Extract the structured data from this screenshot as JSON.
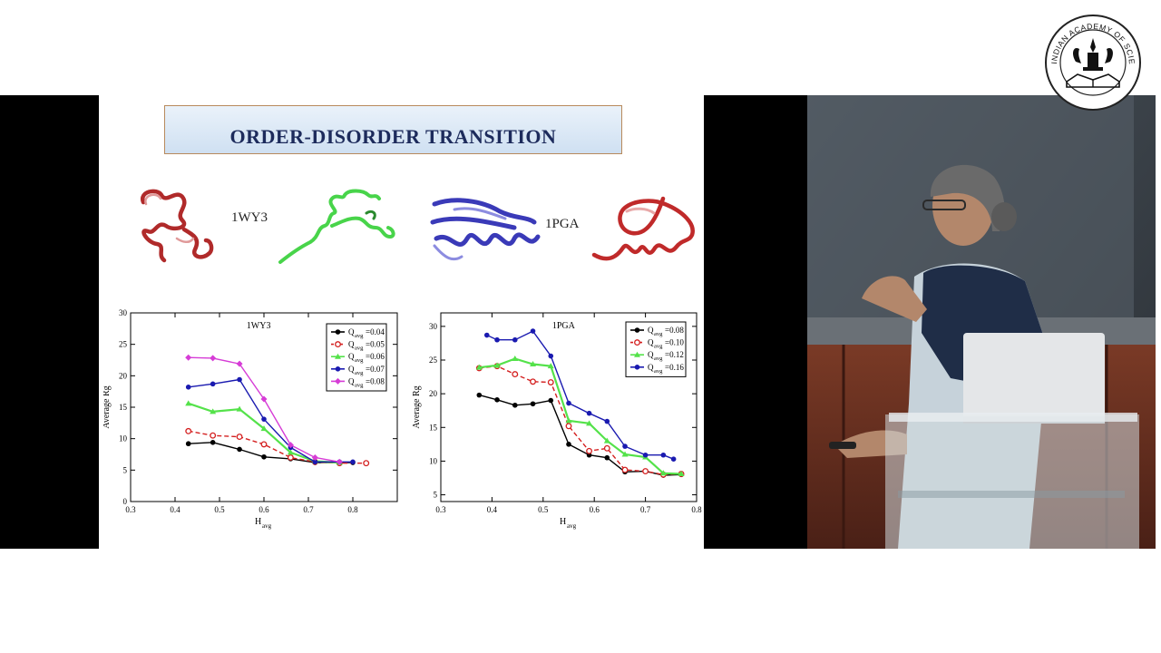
{
  "slide": {
    "title": "ORDER-DISORDER TRANSITION",
    "protein_labels": [
      "1WY3",
      "1PGA"
    ]
  },
  "chart_data": [
    {
      "type": "line",
      "title": "1WY3",
      "xlabel": "H",
      "xlabel_sub": "avg",
      "ylabel": "Average Rg",
      "xlim": [
        0.3,
        0.9
      ],
      "ylim": [
        0,
        30
      ],
      "xticks": [
        "0.3",
        "0.4",
        "0.5",
        "0.6",
        "0.7",
        "0.8"
      ],
      "yticks": [
        "0",
        "5",
        "10",
        "15",
        "20",
        "25",
        "30"
      ],
      "legend_position": "top-right",
      "series": [
        {
          "name": "Q",
          "sub": "avg",
          "suffix": "=0.04",
          "color": "#000000",
          "marker": "circle",
          "dash": false,
          "x": [
            0.43,
            0.485,
            0.545,
            0.6,
            0.66,
            0.715,
            0.77,
            0.8
          ],
          "y": [
            9.2,
            9.4,
            8.3,
            7.1,
            6.8,
            6.2,
            6.2,
            6.2
          ]
        },
        {
          "name": "Q",
          "sub": "avg",
          "suffix": "=0.05",
          "color": "#d42020",
          "marker": "circle-open",
          "dash": true,
          "x": [
            0.43,
            0.485,
            0.545,
            0.6,
            0.66,
            0.715,
            0.77,
            0.83
          ],
          "y": [
            11.2,
            10.5,
            10.3,
            9.1,
            7.0,
            6.3,
            6.1,
            6.1
          ]
        },
        {
          "name": "Q",
          "sub": "avg",
          "suffix": "=0.06",
          "color": "#54e24a",
          "marker": "triangle",
          "dash": false,
          "x": [
            0.43,
            0.485,
            0.545,
            0.6,
            0.66,
            0.715,
            0.77
          ],
          "y": [
            15.6,
            14.3,
            14.7,
            11.6,
            7.8,
            6.4,
            6.2
          ]
        },
        {
          "name": "Q",
          "sub": "avg",
          "suffix": "=0.07",
          "color": "#1a1ab0",
          "marker": "circle",
          "dash": false,
          "x": [
            0.43,
            0.485,
            0.545,
            0.6,
            0.66,
            0.715,
            0.77,
            0.8
          ],
          "y": [
            18.2,
            18.7,
            19.4,
            13.1,
            8.6,
            6.3,
            6.3,
            6.3
          ]
        },
        {
          "name": "Q",
          "sub": "avg",
          "suffix": "=0.08",
          "color": "#d63cd6",
          "marker": "diamond",
          "dash": false,
          "x": [
            0.43,
            0.485,
            0.545,
            0.6,
            0.66,
            0.715,
            0.77
          ],
          "y": [
            22.9,
            22.8,
            21.9,
            16.3,
            9.0,
            7.0,
            6.3
          ]
        }
      ]
    },
    {
      "type": "line",
      "title": "1PGA",
      "xlabel": "H",
      "xlabel_sub": "avg",
      "ylabel": "Average Rg",
      "xlim": [
        0.3,
        0.8
      ],
      "ylim": [
        4,
        32
      ],
      "xticks": [
        "0.3",
        "0.4",
        "0.5",
        "0.6",
        "0.7",
        "0.8"
      ],
      "yticks": [
        "5",
        "10",
        "15",
        "20",
        "25",
        "30"
      ],
      "legend_position": "top-right",
      "series": [
        {
          "name": "Q",
          "sub": "avg",
          "suffix": "=0.08",
          "color": "#000000",
          "marker": "circle",
          "dash": false,
          "x": [
            0.375,
            0.41,
            0.445,
            0.48,
            0.515,
            0.55,
            0.59,
            0.625,
            0.66,
            0.7,
            0.735,
            0.77
          ],
          "y": [
            19.8,
            19.1,
            18.3,
            18.5,
            19.0,
            12.5,
            10.9,
            10.5,
            8.4,
            8.5,
            7.9,
            8.0
          ]
        },
        {
          "name": "Q",
          "sub": "avg",
          "suffix": "=0.10",
          "color": "#d42020",
          "marker": "circle-open",
          "dash": true,
          "x": [
            0.375,
            0.41,
            0.445,
            0.48,
            0.515,
            0.55,
            0.59,
            0.625,
            0.66,
            0.7,
            0.735,
            0.77
          ],
          "y": [
            23.8,
            24.1,
            22.9,
            21.8,
            21.7,
            15.2,
            11.5,
            11.9,
            8.7,
            8.5,
            8.0,
            8.1
          ]
        },
        {
          "name": "Q",
          "sub": "avg",
          "suffix": "=0.12",
          "color": "#54e24a",
          "marker": "triangle",
          "dash": false,
          "x": [
            0.375,
            0.41,
            0.445,
            0.48,
            0.515,
            0.55,
            0.59,
            0.625,
            0.66,
            0.7,
            0.735,
            0.77
          ],
          "y": [
            23.9,
            24.2,
            25.2,
            24.4,
            24.1,
            16.0,
            15.6,
            13.0,
            11.0,
            10.6,
            8.2,
            8.1
          ]
        },
        {
          "name": "Q",
          "sub": "avg",
          "suffix": "=0.16",
          "color": "#1a1ab0",
          "marker": "circle",
          "dash": false,
          "x": [
            0.39,
            0.41,
            0.445,
            0.48,
            0.515,
            0.55,
            0.59,
            0.625,
            0.66,
            0.7,
            0.735,
            0.755
          ],
          "y": [
            28.7,
            28.0,
            28.0,
            29.3,
            25.6,
            18.6,
            17.1,
            15.9,
            12.2,
            10.9,
            10.9,
            10.3
          ]
        }
      ]
    }
  ],
  "colors": {
    "title_text": "#1d2b5c",
    "title_border": "#b88a5c",
    "frame_black": "#000000"
  },
  "logo": {
    "text": "INDIAN ACADEMY OF SCIENCES"
  },
  "video": {
    "icon": "speaker-video"
  }
}
